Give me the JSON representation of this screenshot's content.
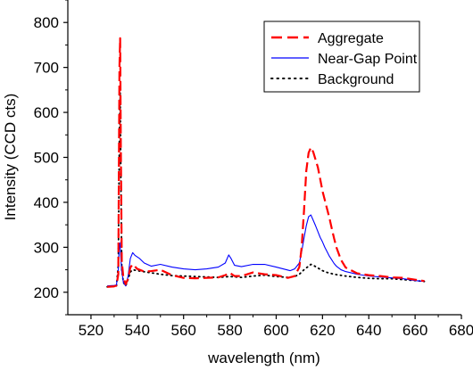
{
  "chart_data": {
    "type": "line",
    "title": "",
    "xlabel": "wavelength (nm)",
    "ylabel": "Intensity (CCD cts)",
    "xlim": [
      510,
      680
    ],
    "ylim": [
      150,
      850
    ],
    "x_ticks": [
      520,
      540,
      560,
      580,
      600,
      620,
      640,
      660,
      680
    ],
    "y_ticks": [
      200,
      300,
      400,
      500,
      600,
      700,
      800
    ],
    "grid": false,
    "legend_position": "top-right",
    "series": [
      {
        "name": "Aggregate",
        "color": "#ff0000",
        "style": "dashed",
        "points": [
          [
            527,
            212
          ],
          [
            530,
            213
          ],
          [
            531,
            215
          ],
          [
            531.8,
            240
          ],
          [
            532.3,
            700
          ],
          [
            532.6,
            765
          ],
          [
            532.9,
            520
          ],
          [
            533.3,
            270
          ],
          [
            534,
            232
          ],
          [
            535,
            218
          ],
          [
            536,
            230
          ],
          [
            537,
            255
          ],
          [
            538,
            262
          ],
          [
            540,
            252
          ],
          [
            543,
            246
          ],
          [
            546,
            247
          ],
          [
            550,
            250
          ],
          [
            555,
            238
          ],
          [
            560,
            232
          ],
          [
            565,
            231
          ],
          [
            570,
            232
          ],
          [
            575,
            233
          ],
          [
            578,
            238
          ],
          [
            580,
            243
          ],
          [
            582,
            236
          ],
          [
            585,
            236
          ],
          [
            590,
            244
          ],
          [
            595,
            240
          ],
          [
            600,
            238
          ],
          [
            605,
            232
          ],
          [
            608,
            236
          ],
          [
            610,
            256
          ],
          [
            611,
            300
          ],
          [
            612,
            380
          ],
          [
            613,
            470
          ],
          [
            614,
            510
          ],
          [
            615,
            522
          ],
          [
            616,
            512
          ],
          [
            617,
            495
          ],
          [
            618,
            478
          ],
          [
            619,
            452
          ],
          [
            620,
            425
          ],
          [
            621,
            405
          ],
          [
            622,
            385
          ],
          [
            623,
            365
          ],
          [
            624,
            342
          ],
          [
            625,
            320
          ],
          [
            626,
            300
          ],
          [
            628,
            272
          ],
          [
            630,
            255
          ],
          [
            635,
            242
          ],
          [
            640,
            238
          ],
          [
            645,
            236
          ],
          [
            650,
            233
          ],
          [
            655,
            232
          ],
          [
            660,
            228
          ],
          [
            664,
            225
          ]
        ]
      },
      {
        "name": "Near-Gap Point",
        "color": "#0000ff",
        "style": "solid",
        "points": [
          [
            527,
            214
          ],
          [
            530,
            215
          ],
          [
            531,
            216
          ],
          [
            531.8,
            250
          ],
          [
            532.2,
            300
          ],
          [
            532.5,
            310
          ],
          [
            532.8,
            285
          ],
          [
            533.2,
            250
          ],
          [
            534,
            222
          ],
          [
            535,
            214
          ],
          [
            536,
            235
          ],
          [
            537,
            275
          ],
          [
            538,
            288
          ],
          [
            539,
            282
          ],
          [
            541,
            275
          ],
          [
            543,
            265
          ],
          [
            546,
            258
          ],
          [
            550,
            262
          ],
          [
            555,
            256
          ],
          [
            560,
            252
          ],
          [
            565,
            250
          ],
          [
            570,
            252
          ],
          [
            575,
            256
          ],
          [
            578,
            265
          ],
          [
            579.5,
            283
          ],
          [
            580.5,
            275
          ],
          [
            582,
            260
          ],
          [
            585,
            257
          ],
          [
            590,
            262
          ],
          [
            595,
            262
          ],
          [
            600,
            256
          ],
          [
            603,
            252
          ],
          [
            606,
            248
          ],
          [
            608,
            252
          ],
          [
            610,
            265
          ],
          [
            611,
            290
          ],
          [
            612,
            320
          ],
          [
            613,
            348
          ],
          [
            614,
            368
          ],
          [
            615,
            372
          ],
          [
            616,
            360
          ],
          [
            617,
            348
          ],
          [
            618,
            335
          ],
          [
            619,
            322
          ],
          [
            620,
            312
          ],
          [
            621,
            300
          ],
          [
            622,
            290
          ],
          [
            623,
            280
          ],
          [
            624,
            272
          ],
          [
            625,
            264
          ],
          [
            626,
            258
          ],
          [
            628,
            250
          ],
          [
            630,
            246
          ],
          [
            635,
            240
          ],
          [
            640,
            236
          ],
          [
            645,
            234
          ],
          [
            650,
            232
          ],
          [
            655,
            230
          ],
          [
            660,
            226
          ],
          [
            664,
            224
          ]
        ]
      },
      {
        "name": "Background",
        "color": "#000000",
        "style": "dotted",
        "points": [
          [
            527,
            212
          ],
          [
            530,
            213
          ],
          [
            531,
            214
          ],
          [
            531.8,
            260
          ],
          [
            532.3,
            560
          ],
          [
            532.6,
            645
          ],
          [
            532.9,
            460
          ],
          [
            533.3,
            250
          ],
          [
            534,
            222
          ],
          [
            535,
            214
          ],
          [
            536,
            228
          ],
          [
            537,
            245
          ],
          [
            538,
            250
          ],
          [
            540,
            248
          ],
          [
            545,
            244
          ],
          [
            550,
            240
          ],
          [
            555,
            237
          ],
          [
            560,
            236
          ],
          [
            565,
            235
          ],
          [
            570,
            234
          ],
          [
            575,
            233
          ],
          [
            580,
            235
          ],
          [
            585,
            233
          ],
          [
            590,
            236
          ],
          [
            595,
            238
          ],
          [
            600,
            235
          ],
          [
            605,
            233
          ],
          [
            608,
            235
          ],
          [
            610,
            240
          ],
          [
            612,
            250
          ],
          [
            614,
            258
          ],
          [
            615,
            262
          ],
          [
            616,
            260
          ],
          [
            618,
            254
          ],
          [
            620,
            248
          ],
          [
            622,
            244
          ],
          [
            625,
            240
          ],
          [
            630,
            236
          ],
          [
            635,
            233
          ],
          [
            640,
            231
          ],
          [
            645,
            230
          ],
          [
            650,
            230
          ],
          [
            655,
            228
          ],
          [
            660,
            226
          ],
          [
            664,
            224
          ]
        ]
      }
    ]
  }
}
